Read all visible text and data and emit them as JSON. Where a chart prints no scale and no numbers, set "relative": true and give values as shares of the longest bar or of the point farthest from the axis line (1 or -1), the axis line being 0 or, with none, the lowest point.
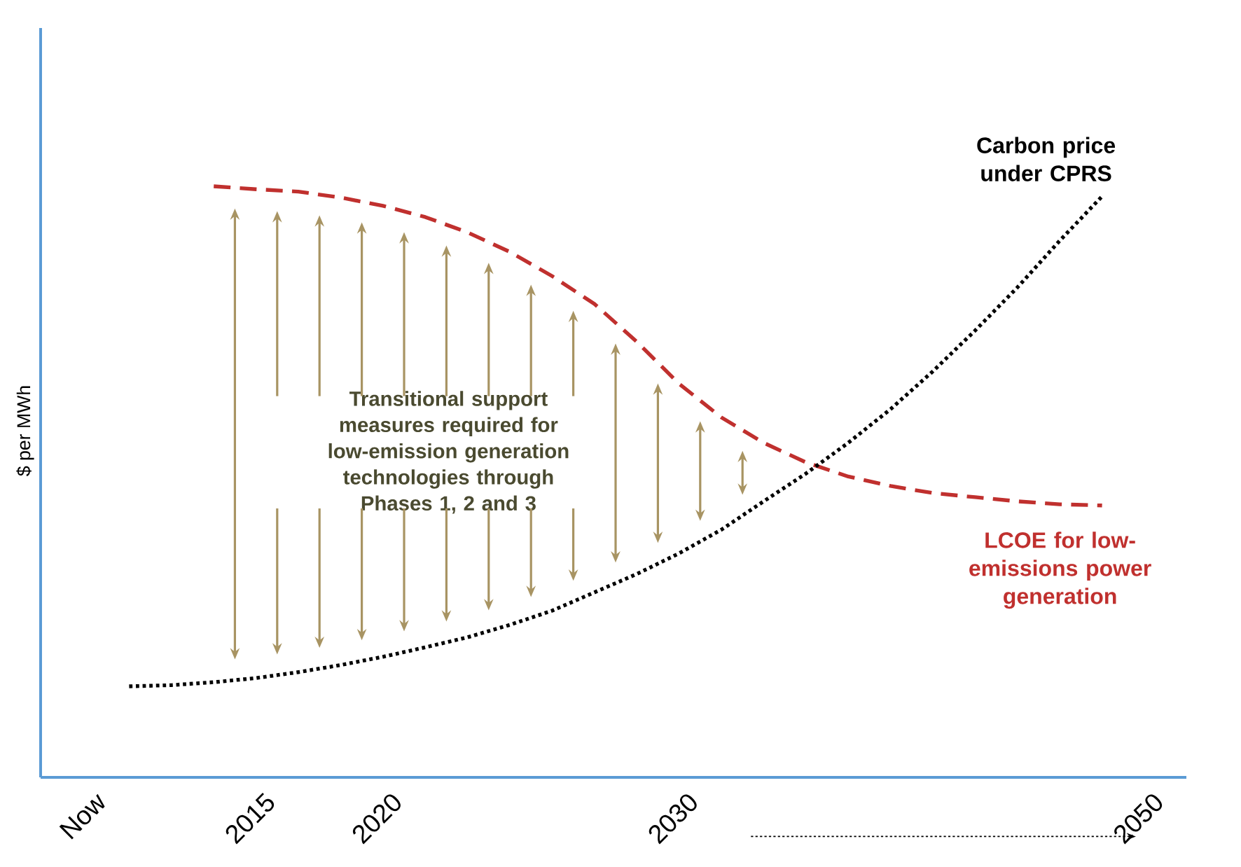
{
  "chart_data": {
    "type": "line",
    "relative": true,
    "ylabel": "$ per MWh",
    "categories": [
      "Now",
      null,
      null,
      null,
      "2015",
      null,
      null,
      "2020",
      null,
      null,
      null,
      null,
      null,
      null,
      "2030",
      null,
      null,
      null,
      null,
      null,
      null,
      null,
      null,
      null,
      null,
      "2050"
    ],
    "series": [
      {
        "name": "LCOE for low-emissions power generation",
        "color": "#c0302e",
        "line_style": "dashed",
        "values": [
          null,
          null,
          null,
          1.0,
          0.995,
          0.991,
          0.981,
          0.967,
          0.948,
          0.922,
          0.889,
          0.848,
          0.801,
          0.737,
          0.666,
          0.609,
          0.566,
          0.533,
          0.509,
          0.493,
          0.481,
          0.474,
          0.467,
          0.462,
          0.46,
          null
        ]
      },
      {
        "name": "Carbon price under CPRS",
        "color": "#000000",
        "line_style": "dotted",
        "values": [
          null,
          0.154,
          0.156,
          0.161,
          0.168,
          0.178,
          0.19,
          0.204,
          0.22,
          0.237,
          0.258,
          0.282,
          0.313,
          0.344,
          0.379,
          0.419,
          0.467,
          0.514,
          0.566,
          0.623,
          0.687,
          0.756,
          0.829,
          0.908,
          0.983,
          null
        ]
      }
    ],
    "annotations": [
      "Transitional support measures required for low-emission generation technologies through Phases 1, 2 and 3"
    ],
    "marker": "none"
  }
}
